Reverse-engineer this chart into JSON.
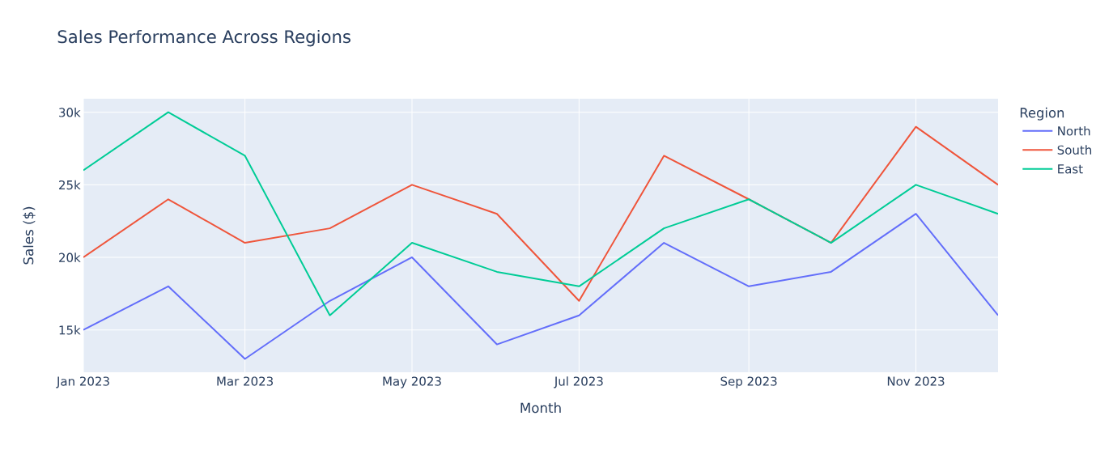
{
  "chart_data": {
    "type": "line",
    "title": "Sales Performance Across Regions",
    "xlabel": "Month",
    "ylabel": "Sales ($)",
    "legend_title": "Region",
    "x": [
      "2023-01",
      "2023-02",
      "2023-03",
      "2023-04",
      "2023-05",
      "2023-06",
      "2023-07",
      "2023-08",
      "2023-09",
      "2023-10",
      "2023-11",
      "2023-12"
    ],
    "series": [
      {
        "name": "North",
        "color": "#636efa",
        "values": [
          15000,
          18000,
          13000,
          17000,
          20000,
          14000,
          16000,
          21000,
          18000,
          19000,
          23000,
          16000
        ]
      },
      {
        "name": "South",
        "color": "#ef553b",
        "values": [
          20000,
          24000,
          21000,
          22000,
          25000,
          23000,
          17000,
          27000,
          24000,
          21000,
          29000,
          25000
        ]
      },
      {
        "name": "East",
        "color": "#00cc96",
        "values": [
          26000,
          30000,
          27000,
          16000,
          21000,
          19000,
          18000,
          22000,
          24000,
          21000,
          25000,
          23000
        ]
      }
    ],
    "xlim": [
      "2023-01",
      "2023-12"
    ],
    "ylim": [
      12080,
      30930
    ],
    "xticks": [
      {
        "value": "2023-01",
        "label": "Jan 2023"
      },
      {
        "value": "2023-03",
        "label": "Mar 2023"
      },
      {
        "value": "2023-05",
        "label": "May 2023"
      },
      {
        "value": "2023-07",
        "label": "Jul 2023"
      },
      {
        "value": "2023-09",
        "label": "Sep 2023"
      },
      {
        "value": "2023-11",
        "label": "Nov 2023"
      }
    ],
    "yticks": [
      {
        "value": 15000,
        "label": "15k"
      },
      {
        "value": 20000,
        "label": "20k"
      },
      {
        "value": 25000,
        "label": "25k"
      },
      {
        "value": 30000,
        "label": "30k"
      }
    ],
    "grid": true,
    "legend": "right"
  }
}
